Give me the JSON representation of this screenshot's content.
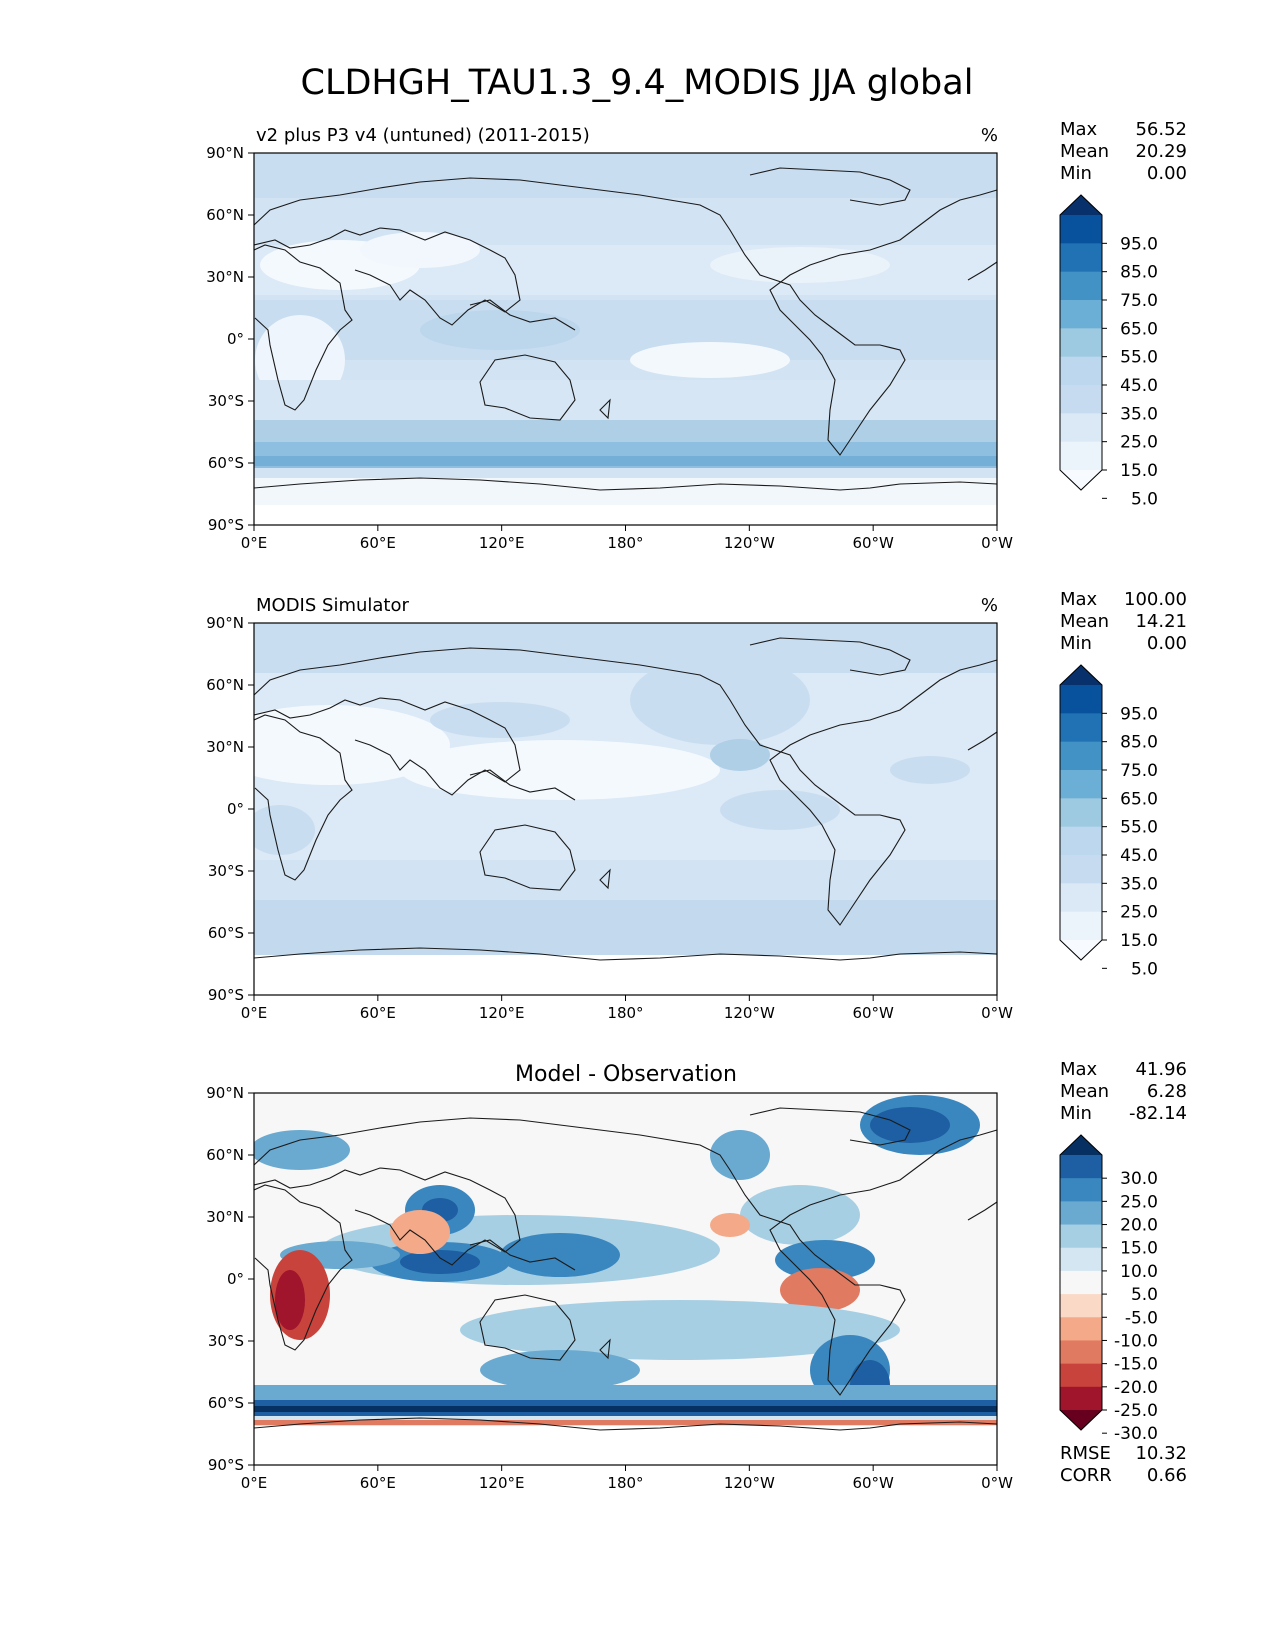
{
  "figure_title": "CLDHGH_TAU1.3_9.4_MODIS JJA global",
  "lat_ticks": [
    "90°N",
    "60°N",
    "30°N",
    "0°",
    "30°S",
    "60°S",
    "90°S"
  ],
  "lon_ticks": [
    "0°E",
    "60°E",
    "120°E",
    "180°",
    "120°W",
    "60°W",
    "0°W"
  ],
  "panels": [
    {
      "title_left": "v2 plus P3 v4 (untuned) (2011-2015)",
      "title_center": "",
      "units": "%",
      "stats": [
        {
          "label": "Max",
          "value": "56.52"
        },
        {
          "label": "Mean",
          "value": "20.29"
        },
        {
          "label": "Min",
          "value": "0.00"
        }
      ],
      "colorbar_levels": [
        "95.0",
        "85.0",
        "75.0",
        "65.0",
        "55.0",
        "45.0",
        "35.0",
        "25.0",
        "15.0",
        "5.0"
      ],
      "colorbar_colors": [
        "#08306b",
        "#08519c",
        "#2171b5",
        "#4292c6",
        "#6baed6",
        "#9ecae1",
        "#bdd7ee",
        "#c6dbef",
        "#dbe9f6",
        "#ebf3fb",
        "#f7fbff"
      ],
      "footer_stats": []
    },
    {
      "title_left": "MODIS Simulator",
      "title_center": "",
      "units": "%",
      "stats": [
        {
          "label": "Max",
          "value": "100.00"
        },
        {
          "label": "Mean",
          "value": "14.21"
        },
        {
          "label": "Min",
          "value": "0.00"
        }
      ],
      "colorbar_levels": [
        "95.0",
        "85.0",
        "75.0",
        "65.0",
        "55.0",
        "45.0",
        "35.0",
        "25.0",
        "15.0",
        "5.0"
      ],
      "colorbar_colors": [
        "#08306b",
        "#08519c",
        "#2171b5",
        "#4292c6",
        "#6baed6",
        "#9ecae1",
        "#bdd7ee",
        "#c6dbef",
        "#dbe9f6",
        "#ebf3fb",
        "#f7fbff"
      ],
      "footer_stats": []
    },
    {
      "title_left": "",
      "title_center": "Model - Observation",
      "units": "",
      "stats": [
        {
          "label": "Max",
          "value": "41.96"
        },
        {
          "label": "Mean",
          "value": "6.28"
        },
        {
          "label": "Min",
          "value": "-82.14"
        }
      ],
      "colorbar_levels": [
        "30.0",
        "25.0",
        "20.0",
        "15.0",
        "10.0",
        "5.0",
        "-5.0",
        "-10.0",
        "-15.0",
        "-20.0",
        "-25.0",
        "-30.0"
      ],
      "colorbar_colors": [
        "#053061",
        "#1d5fa2",
        "#3a87bf",
        "#6aa9d0",
        "#a7cfe4",
        "#d4e6f1",
        "#f7f7f7",
        "#fbd9c7",
        "#f4a988",
        "#e07a61",
        "#c7433c",
        "#a0142c",
        "#67001f"
      ],
      "footer_stats": [
        {
          "label": "RMSE",
          "value": "10.32"
        },
        {
          "label": "CORR",
          "value": "0.66"
        }
      ]
    }
  ]
}
